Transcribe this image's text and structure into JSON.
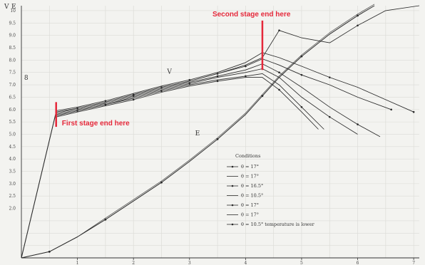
{
  "chart_data": {
    "type": "line",
    "title": "",
    "xlabel": "",
    "ylabel": "",
    "axis_corner_labels": [
      "V",
      "E"
    ],
    "x_ticks": [
      "1",
      "2",
      "3",
      "4",
      "5",
      "6",
      "7"
    ],
    "y_ticks": [
      "10",
      "9.5",
      "9.0",
      "8.5",
      "8.0",
      "7.5",
      "7.0",
      "6.5",
      "6.0",
      "5.5",
      "5.0",
      "4.5",
      "4.0",
      "3.5",
      "3.0",
      "2.5",
      "2.0"
    ],
    "xlim": [
      0,
      7.1
    ],
    "ylim": [
      0,
      10.2
    ],
    "curve_labels": [
      {
        "text": "V",
        "x": 2.6,
        "y": 7.45
      },
      {
        "text": "E",
        "x": 3.1,
        "y": 4.95
      },
      {
        "text": "8",
        "x": 0.05,
        "y": 7.2
      }
    ],
    "annotations": {
      "first_stage": {
        "text": "First stage end here",
        "x": 0.62,
        "y_range": [
          5.3,
          6.3
        ]
      },
      "second_stage": {
        "text": "Second stage end here",
        "x": 4.3,
        "y_range": [
          7.6,
          9.6
        ]
      }
    },
    "legend": {
      "title": "Conditions",
      "entries": [
        "θ = 17°",
        "θ = 17°",
        "θ = 16.5°",
        "θ = 10.5°",
        "θ = 17°",
        "θ = 17°",
        "θ = 10.5° temperature is lower"
      ]
    },
    "series_E": {
      "x": [
        0,
        0.5,
        1,
        1.5,
        2,
        2.5,
        3,
        3.5,
        4,
        4.3,
        4.6,
        5,
        5.5,
        6,
        6.3
      ],
      "y": [
        0,
        0.25,
        0.85,
        1.55,
        2.3,
        3.05,
        3.9,
        4.8,
        5.8,
        6.55,
        7.3,
        8.15,
        9.05,
        9.8,
        10.2
      ]
    },
    "series_V": [
      {
        "rise_x": [
          0,
          0.62
        ],
        "rise_y": [
          0,
          5.9
        ],
        "x": [
          0.62,
          1,
          1.5,
          2,
          2.5,
          3,
          3.5,
          4,
          4.3,
          4.6,
          5,
          5.5,
          6,
          6.5,
          7.1
        ],
        "y": [
          5.9,
          6.05,
          6.3,
          6.6,
          6.9,
          7.15,
          7.45,
          7.8,
          8.1,
          9.2,
          8.9,
          8.7,
          9.4,
          10.0,
          10.2
        ]
      },
      {
        "x": [
          0.62,
          1,
          1.5,
          2,
          2.5,
          3,
          3.5,
          4,
          4.3,
          4.6,
          5,
          5.5,
          6,
          6.5,
          7.0
        ],
        "y": [
          5.95,
          6.1,
          6.35,
          6.65,
          6.95,
          7.2,
          7.5,
          7.9,
          8.3,
          8.1,
          7.75,
          7.3,
          6.9,
          6.4,
          5.9
        ]
      },
      {
        "x": [
          0.62,
          1,
          1.5,
          2,
          2.5,
          3,
          3.5,
          4,
          4.3,
          4.6,
          5,
          5.5,
          6,
          6.6
        ],
        "y": [
          5.85,
          6.05,
          6.3,
          6.6,
          6.9,
          7.15,
          7.45,
          7.75,
          8.05,
          7.8,
          7.4,
          7.0,
          6.5,
          6.0
        ]
      },
      {
        "x": [
          0.62,
          1,
          1.5,
          2,
          2.5,
          3,
          3.5,
          4,
          4.3,
          4.6,
          5,
          5.5,
          6,
          6.4
        ],
        "y": [
          5.8,
          6.0,
          6.25,
          6.55,
          6.85,
          7.1,
          7.35,
          7.6,
          7.85,
          7.5,
          6.9,
          6.1,
          5.4,
          4.9
        ]
      },
      {
        "x": [
          0.62,
          1,
          1.5,
          2,
          2.5,
          3,
          3.5,
          4,
          4.3,
          4.6,
          5,
          5.5,
          6
        ],
        "y": [
          5.75,
          5.95,
          6.2,
          6.5,
          6.8,
          7.05,
          7.3,
          7.5,
          7.65,
          7.3,
          6.5,
          5.7,
          5.0
        ]
      },
      {
        "x": [
          0.62,
          1,
          1.5,
          2,
          2.5,
          3,
          3.5,
          4,
          4.3,
          4.6,
          5,
          5.4
        ],
        "y": [
          5.75,
          5.95,
          6.2,
          6.45,
          6.75,
          7.0,
          7.2,
          7.35,
          7.45,
          7.0,
          6.1,
          5.2
        ]
      },
      {
        "x": [
          0.62,
          1,
          1.5,
          2,
          2.5,
          3,
          3.5,
          4,
          4.3,
          4.6,
          5,
          5.3
        ],
        "y": [
          5.7,
          5.9,
          6.15,
          6.4,
          6.7,
          6.95,
          7.15,
          7.3,
          7.3,
          6.8,
          5.9,
          5.2
        ]
      }
    ]
  }
}
